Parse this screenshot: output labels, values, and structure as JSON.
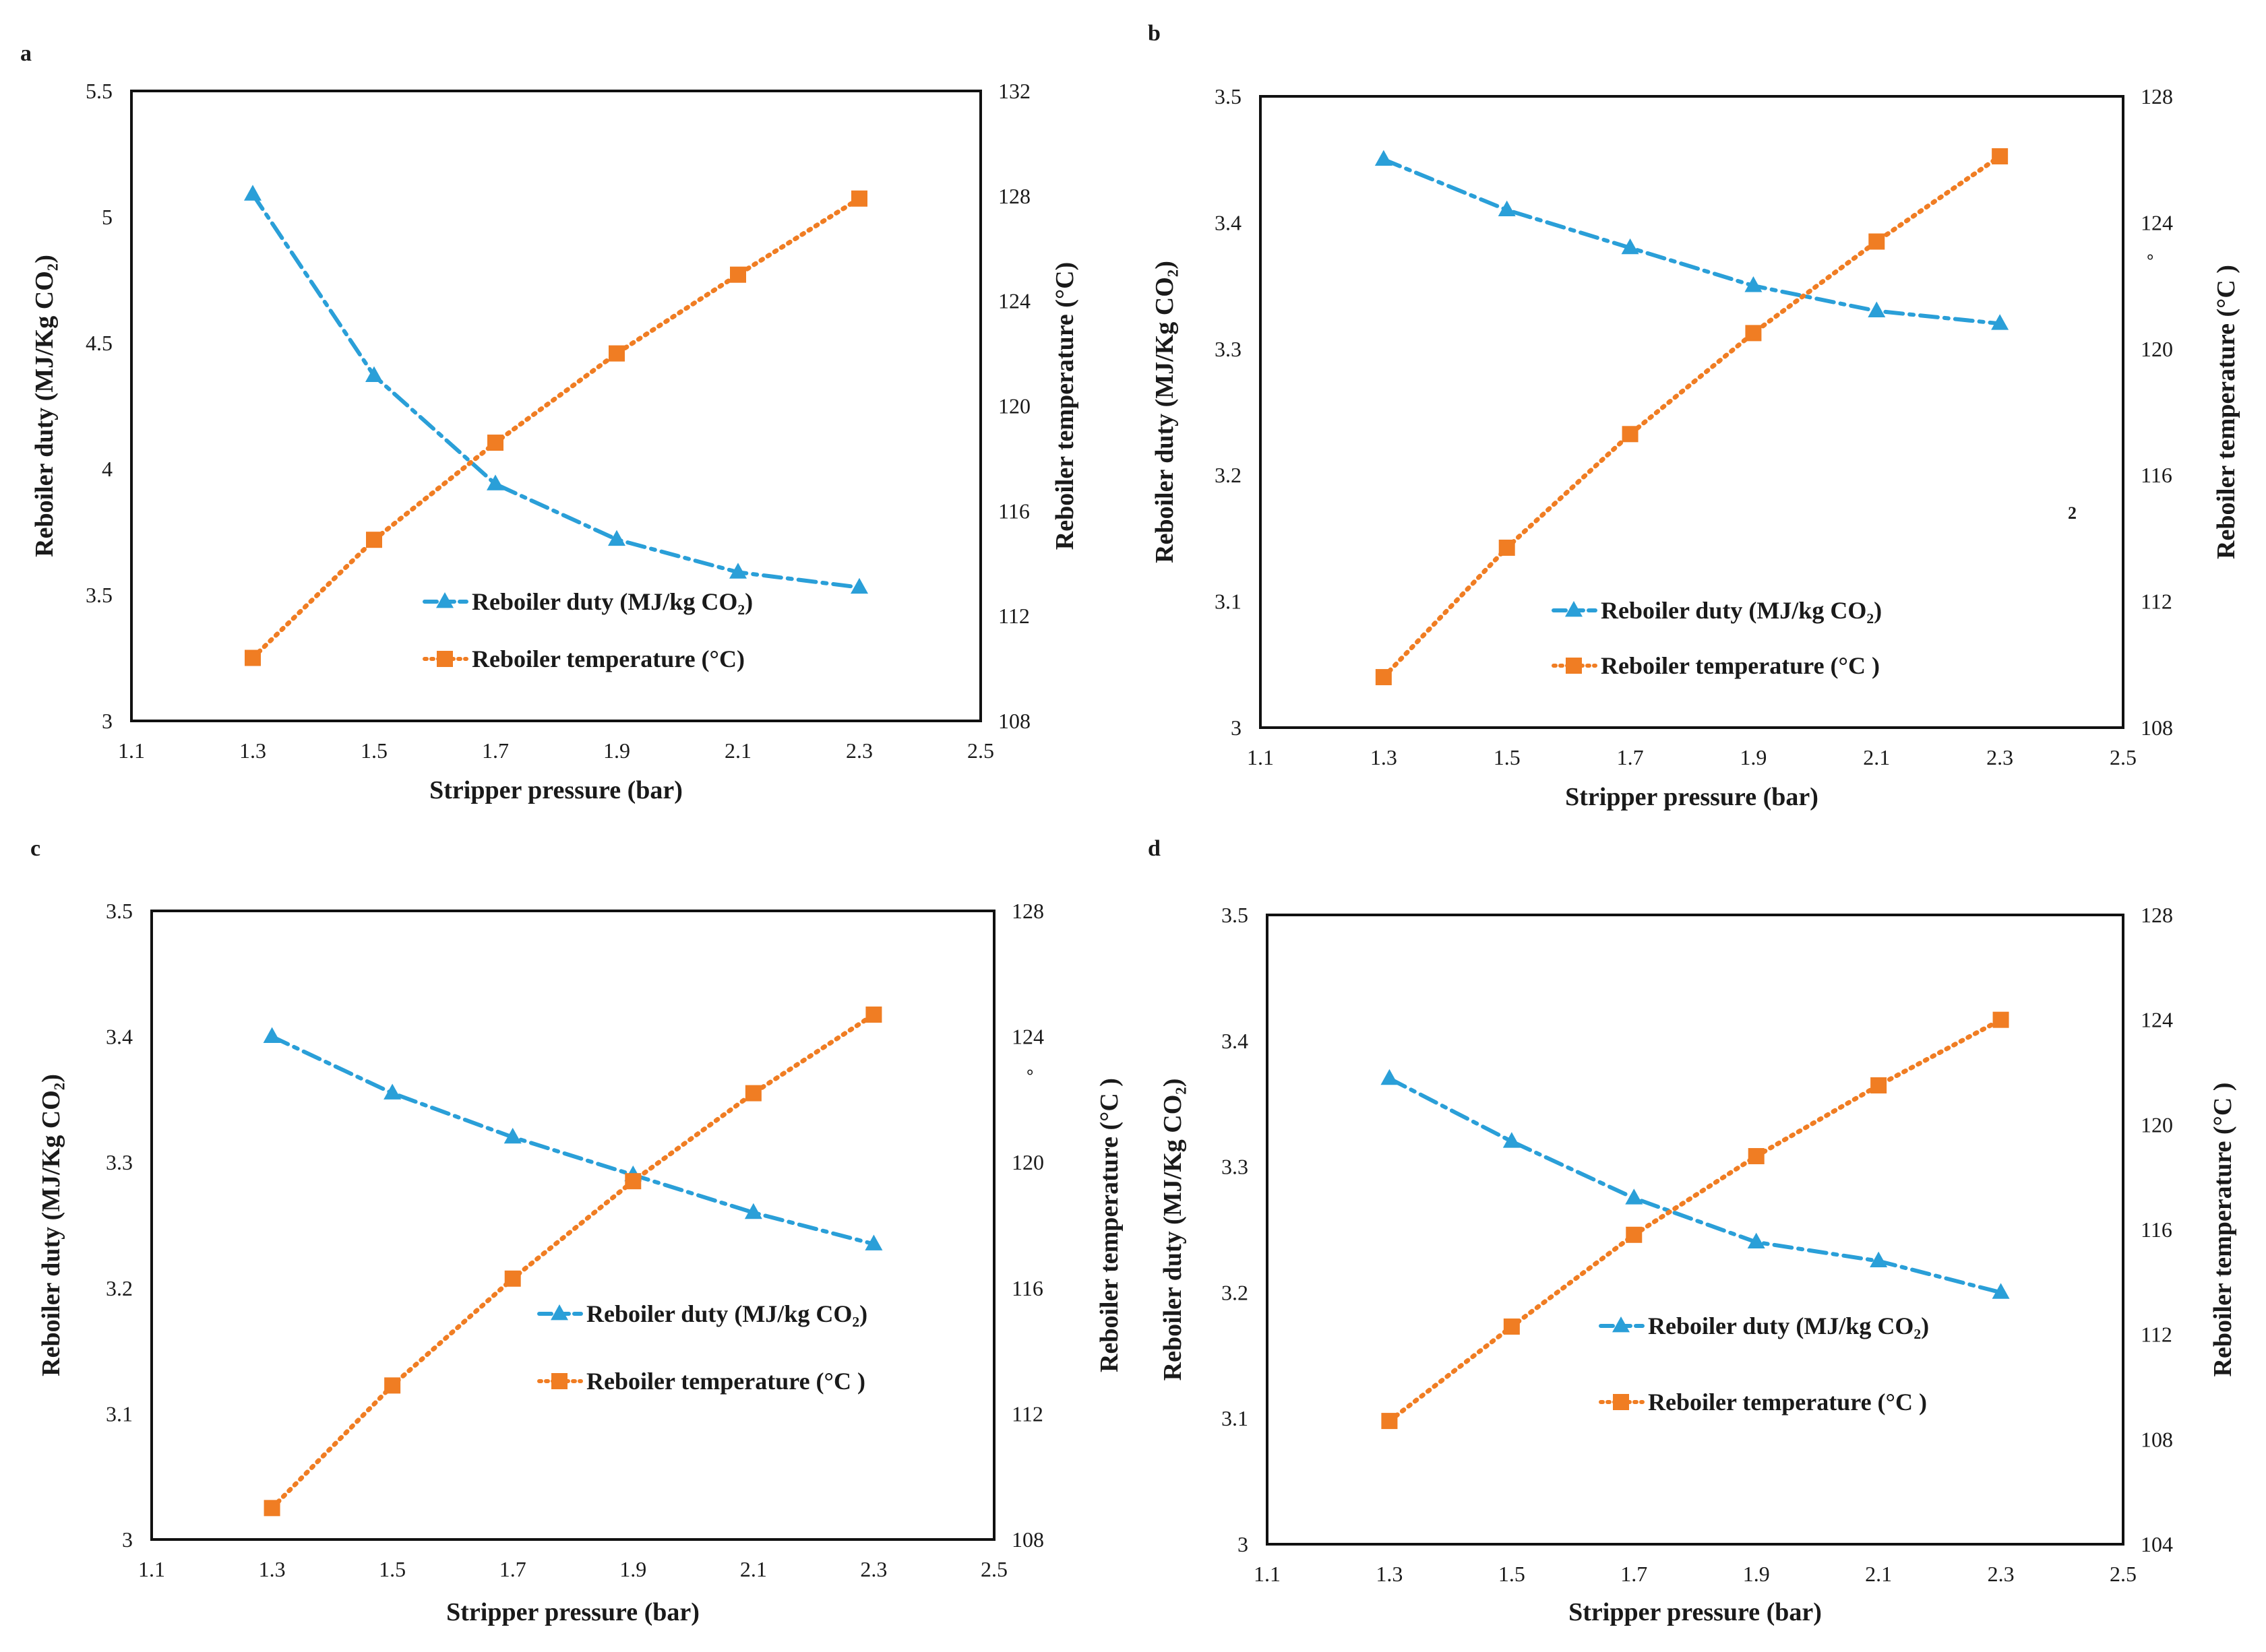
{
  "colors": {
    "duty": "#2a9fd8",
    "temp": "#f07d23",
    "axis": "#111111"
  },
  "chart_data": [
    {
      "id": "a",
      "type": "line",
      "panel_label": "a",
      "title": "",
      "xlabel": "Stripper pressure (bar)",
      "ylabel": "Reboiler duty (MJ/Kg CO₂)",
      "y2label": "Reboiler temperature (°C)",
      "xlim": [
        1.1,
        2.5
      ],
      "xticks": [
        "1.1",
        "1.3",
        "1.5",
        "1.7",
        "1.9",
        "2.1",
        "2.3",
        "2.5"
      ],
      "ylim": [
        3,
        5.5
      ],
      "yticks": [
        "3",
        "3.5",
        "4",
        "4.5",
        "5",
        "5.5"
      ],
      "y2lim": [
        108,
        132
      ],
      "y2ticks": [
        "108",
        "112",
        "116",
        "120",
        "124",
        "128",
        "132"
      ],
      "x": [
        1.3,
        1.5,
        1.7,
        1.9,
        2.1,
        2.3
      ],
      "series": [
        {
          "name": "Reboiler duty (MJ/kg CO₂)",
          "axis": "left",
          "marker": "triangle",
          "values": [
            5.09,
            4.37,
            3.94,
            3.72,
            3.59,
            3.53
          ]
        },
        {
          "name": "Reboiler temperature (°C)",
          "axis": "right",
          "marker": "square",
          "values": [
            110.4,
            114.9,
            118.6,
            122.0,
            125.0,
            127.9
          ]
        }
      ],
      "stray_marks": []
    },
    {
      "id": "b",
      "type": "line",
      "panel_label": "b",
      "title": "",
      "xlabel": "Stripper pressure (bar)",
      "ylabel": "Reboiler duty (MJ/Kg CO₂)",
      "y2label": "Reboiler temperature (°C )",
      "xlim": [
        1.1,
        2.5
      ],
      "xticks": [
        "1.1",
        "1.3",
        "1.5",
        "1.7",
        "1.9",
        "2.1",
        "2.3",
        "2.5"
      ],
      "ylim": [
        3,
        3.5
      ],
      "yticks": [
        "3",
        "3.1",
        "3.2",
        "3.3",
        "3.4",
        "3.5"
      ],
      "y2lim": [
        108,
        128
      ],
      "y2ticks": [
        "108",
        "112",
        "116",
        "120",
        "124",
        "128"
      ],
      "x": [
        1.3,
        1.5,
        1.7,
        1.9,
        2.1,
        2.3
      ],
      "series": [
        {
          "name": "Reboiler duty (MJ/kg CO₂)",
          "axis": "left",
          "marker": "triangle",
          "values": [
            3.45,
            3.41,
            3.38,
            3.35,
            3.33,
            3.32
          ]
        },
        {
          "name": "Reboiler temperature (°C )",
          "axis": "right",
          "marker": "square",
          "values": [
            109.6,
            113.7,
            117.3,
            120.5,
            123.4,
            126.1
          ]
        }
      ],
      "stray_marks": [
        {
          "text": "°",
          "where": "right-axis-upper"
        },
        {
          "text": "2",
          "where": "right-axis-lower"
        }
      ]
    },
    {
      "id": "c",
      "type": "line",
      "panel_label": "c",
      "title": "",
      "xlabel": "Stripper pressure (bar)",
      "ylabel": "Reboiler duty (MJ/Kg CO₂)",
      "y2label": "Reboiler temperature (°C )",
      "xlim": [
        1.1,
        2.5
      ],
      "xticks": [
        "1.1",
        "1.3",
        "1.5",
        "1.7",
        "1.9",
        "2.1",
        "2.3",
        "2.5"
      ],
      "ylim": [
        3,
        3.5
      ],
      "yticks": [
        "3",
        "3.1",
        "3.2",
        "3.3",
        "3.4",
        "3.5"
      ],
      "y2lim": [
        108,
        128
      ],
      "y2ticks": [
        "108",
        "112",
        "116",
        "120",
        "124",
        "128"
      ],
      "x": [
        1.3,
        1.5,
        1.7,
        1.9,
        2.1,
        2.3
      ],
      "series": [
        {
          "name": "Reboiler duty (MJ/kg CO₂)",
          "axis": "left",
          "marker": "triangle",
          "values": [
            3.4,
            3.355,
            3.32,
            3.29,
            3.26,
            3.235
          ]
        },
        {
          "name": "Reboiler temperature (°C )",
          "axis": "right",
          "marker": "square",
          "values": [
            109.0,
            112.9,
            116.3,
            119.4,
            122.2,
            124.7
          ]
        }
      ],
      "stray_marks": [
        {
          "text": "°",
          "where": "right-axis-upper"
        }
      ]
    },
    {
      "id": "d",
      "type": "line",
      "panel_label": "d",
      "title": "",
      "xlabel": "Stripper pressure (bar)",
      "ylabel": "Reboiler duty (MJ/Kg CO₂)",
      "y2label": "Reboiler temperature (°C )",
      "xlim": [
        1.1,
        2.5
      ],
      "xticks": [
        "1.1",
        "1.3",
        "1.5",
        "1.7",
        "1.9",
        "2.1",
        "2.3",
        "2.5"
      ],
      "ylim": [
        3,
        3.5
      ],
      "yticks": [
        "3",
        "3.1",
        "3.2",
        "3.3",
        "3.4",
        "3.5"
      ],
      "y2lim": [
        104,
        128
      ],
      "y2ticks": [
        "104",
        "108",
        "112",
        "116",
        "120",
        "124",
        "128"
      ],
      "x": [
        1.3,
        1.5,
        1.7,
        1.9,
        2.1,
        2.3
      ],
      "series": [
        {
          "name": "Reboiler duty (MJ/kg CO₂)",
          "axis": "left",
          "marker": "triangle",
          "values": [
            3.37,
            3.32,
            3.275,
            3.24,
            3.225,
            3.2
          ]
        },
        {
          "name": "Reboiler temperature (°C )",
          "axis": "right",
          "marker": "square",
          "values": [
            108.7,
            112.3,
            115.8,
            118.8,
            121.5,
            124.0
          ]
        }
      ],
      "stray_marks": []
    }
  ]
}
